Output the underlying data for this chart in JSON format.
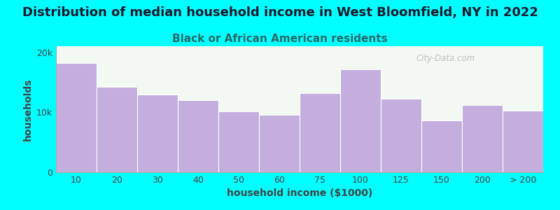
{
  "title": "Distribution of median household income in West Bloomfield, NY in 2022",
  "subtitle": "Black or African American residents",
  "xlabel": "household income ($1000)",
  "ylabel": "households",
  "background_color": "#00FFFF",
  "plot_bg_color": "#f2f8f2",
  "bar_color": "#C4AEDD",
  "bar_edge_color": "#ffffff",
  "categories": [
    "10",
    "20",
    "30",
    "40",
    "50",
    "60",
    "75",
    "100",
    "125",
    "150",
    "200",
    "> 200"
  ],
  "values": [
    18200,
    14200,
    13000,
    12000,
    10200,
    9600,
    13200,
    17200,
    12200,
    8600,
    11200,
    10300
  ],
  "ylim": [
    0,
    21000
  ],
  "yticks": [
    0,
    10000,
    20000
  ],
  "ytick_labels": [
    "0",
    "10k",
    "20k"
  ],
  "title_fontsize": 13,
  "subtitle_fontsize": 11,
  "axis_label_fontsize": 10,
  "tick_fontsize": 9,
  "title_color": "#1a1a2e",
  "subtitle_color": "#2a6a6a",
  "axis_label_color": "#444444",
  "tick_color": "#444444",
  "watermark_text": "City-Data.com",
  "watermark_color": "#b0b8b0",
  "spine_color": "#aaaaaa"
}
